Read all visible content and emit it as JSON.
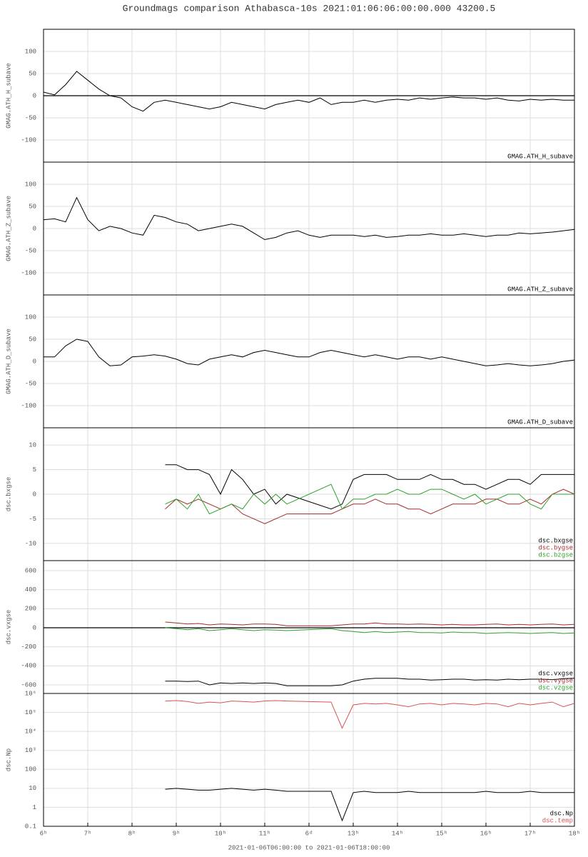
{
  "title": "Groundmags comparison Athabasca-10s 2021:01:06:06:00:00.000 43200.5",
  "chart_data": [
    {
      "type": "line",
      "ylabel": "GMAG.ATH_H_subave",
      "grid": true,
      "zero_line": true,
      "legend": "lower right",
      "xlim": [
        6,
        18
      ],
      "xticks": [
        6,
        7,
        8,
        9,
        10,
        11,
        12,
        13,
        14,
        15,
        16,
        17,
        18
      ],
      "ylim": [
        -150,
        150
      ],
      "yticks": [
        -100,
        -50,
        0,
        50,
        100
      ],
      "x": [
        6,
        6.25,
        6.5,
        6.75,
        7,
        7.25,
        7.5,
        7.75,
        8,
        8.25,
        8.5,
        8.75,
        9,
        9.25,
        9.5,
        9.75,
        10,
        10.25,
        10.5,
        10.75,
        11,
        11.25,
        11.5,
        11.75,
        12,
        12.25,
        12.5,
        12.75,
        13,
        13.25,
        13.5,
        13.75,
        14,
        14.25,
        14.5,
        14.75,
        15,
        15.25,
        15.5,
        15.75,
        16,
        16.25,
        16.5,
        16.75,
        17,
        17.25,
        17.5,
        17.75,
        18
      ],
      "series": [
        {
          "name": "GMAG.ATH_H_subave",
          "color": "#000000",
          "values": [
            8,
            2,
            25,
            55,
            35,
            15,
            0,
            -5,
            -25,
            -35,
            -15,
            -10,
            -15,
            -20,
            -25,
            -30,
            -25,
            -15,
            -20,
            -25,
            -30,
            -20,
            -15,
            -10,
            -15,
            -5,
            -20,
            -15,
            -15,
            -10,
            -15,
            -10,
            -8,
            -10,
            -5,
            -8,
            -5,
            -3,
            -5,
            -5,
            -8,
            -5,
            -10,
            -12,
            -8,
            -10,
            -8,
            -10,
            -10
          ]
        }
      ]
    },
    {
      "type": "line",
      "ylabel": "GMAG.ATH_Z_subave",
      "grid": true,
      "zero_line": false,
      "legend": "lower right",
      "xlim": [
        6,
        18
      ],
      "xticks": [
        6,
        7,
        8,
        9,
        10,
        11,
        12,
        13,
        14,
        15,
        16,
        17,
        18
      ],
      "ylim": [
        -150,
        150
      ],
      "yticks": [
        -100,
        -50,
        0,
        50,
        100
      ],
      "x": [
        6,
        6.25,
        6.5,
        6.75,
        7,
        7.25,
        7.5,
        7.75,
        8,
        8.25,
        8.5,
        8.75,
        9,
        9.25,
        9.5,
        9.75,
        10,
        10.25,
        10.5,
        10.75,
        11,
        11.25,
        11.5,
        11.75,
        12,
        12.25,
        12.5,
        12.75,
        13,
        13.25,
        13.5,
        13.75,
        14,
        14.25,
        14.5,
        14.75,
        15,
        15.25,
        15.5,
        15.75,
        16,
        16.25,
        16.5,
        16.75,
        17,
        17.25,
        17.5,
        17.75,
        18
      ],
      "series": [
        {
          "name": "GMAG.ATH_Z_subave",
          "color": "#000000",
          "values": [
            20,
            22,
            15,
            70,
            20,
            -5,
            5,
            0,
            -10,
            -15,
            30,
            25,
            15,
            10,
            -5,
            0,
            5,
            10,
            5,
            -10,
            -25,
            -20,
            -10,
            -5,
            -15,
            -20,
            -15,
            -15,
            -15,
            -18,
            -15,
            -20,
            -18,
            -15,
            -15,
            -12,
            -15,
            -15,
            -12,
            -15,
            -18,
            -15,
            -15,
            -10,
            -12,
            -10,
            -8,
            -5,
            -2
          ]
        }
      ]
    },
    {
      "type": "line",
      "ylabel": "GMAG.ATH_D_subave",
      "grid": true,
      "zero_line": false,
      "legend": "lower right",
      "xlim": [
        6,
        18
      ],
      "xticks": [
        6,
        7,
        8,
        9,
        10,
        11,
        12,
        13,
        14,
        15,
        16,
        17,
        18
      ],
      "ylim": [
        -150,
        150
      ],
      "yticks": [
        -100,
        -50,
        0,
        50,
        100
      ],
      "x": [
        6,
        6.25,
        6.5,
        6.75,
        7,
        7.25,
        7.5,
        7.75,
        8,
        8.25,
        8.5,
        8.75,
        9,
        9.25,
        9.5,
        9.75,
        10,
        10.25,
        10.5,
        10.75,
        11,
        11.25,
        11.5,
        11.75,
        12,
        12.25,
        12.5,
        12.75,
        13,
        13.25,
        13.5,
        13.75,
        14,
        14.25,
        14.5,
        14.75,
        15,
        15.25,
        15.5,
        15.75,
        16,
        16.25,
        16.5,
        16.75,
        17,
        17.25,
        17.5,
        17.75,
        18
      ],
      "series": [
        {
          "name": "GMAG.ATH_D_subave",
          "color": "#000000",
          "values": [
            10,
            10,
            35,
            50,
            45,
            10,
            -10,
            -8,
            10,
            12,
            15,
            12,
            5,
            -5,
            -8,
            5,
            10,
            15,
            10,
            20,
            25,
            20,
            15,
            10,
            10,
            20,
            25,
            20,
            15,
            10,
            15,
            10,
            5,
            10,
            10,
            5,
            10,
            5,
            0,
            -5,
            -10,
            -8,
            -5,
            -8,
            -10,
            -8,
            -5,
            0,
            3
          ]
        }
      ]
    },
    {
      "type": "line",
      "ylabel": "dsc.bxgse",
      "grid": true,
      "zero_line": false,
      "legend": "lower right",
      "xlim": [
        6,
        18
      ],
      "xticks": [
        6,
        7,
        8,
        9,
        10,
        11,
        12,
        13,
        14,
        15,
        16,
        17,
        18
      ],
      "ylim": [
        -13.5,
        13.5
      ],
      "yticks": [
        -10,
        -5,
        0,
        5,
        10
      ],
      "x": [
        8.75,
        9,
        9.25,
        9.5,
        9.75,
        10,
        10.25,
        10.5,
        10.75,
        11,
        11.25,
        11.5,
        12.5,
        12.75,
        13,
        13.25,
        13.5,
        13.75,
        14,
        14.25,
        14.5,
        14.75,
        15,
        15.25,
        15.5,
        15.75,
        16,
        16.25,
        16.5,
        16.75,
        17,
        17.25,
        17.5,
        17.75,
        18
      ],
      "series": [
        {
          "name": "dsc.bxgse",
          "color": "#000000",
          "values": [
            6,
            6,
            5,
            5,
            4,
            0,
            5,
            3,
            0,
            1,
            -2,
            0,
            -3,
            -2,
            3,
            4,
            4,
            4,
            3,
            3,
            3,
            4,
            3,
            3,
            2,
            2,
            1,
            2,
            3,
            3,
            2,
            4,
            4,
            4,
            4
          ]
        },
        {
          "name": "dsc.bygse",
          "color": "#a52a2a",
          "values": [
            -3,
            -1,
            -2,
            -1,
            -2,
            -3,
            -2,
            -4,
            -5,
            -6,
            -5,
            -4,
            -4,
            -3,
            -2,
            -2,
            -1,
            -2,
            -2,
            -3,
            -3,
            -4,
            -3,
            -2,
            -2,
            -2,
            -1,
            -1,
            -2,
            -2,
            -1,
            -2,
            0,
            1,
            0
          ]
        },
        {
          "name": "dsc.bzgse",
          "color": "#2ca02c",
          "values": [
            -2,
            -1,
            -3,
            0,
            -4,
            -3,
            -2,
            -3,
            0,
            -2,
            0,
            -2,
            2,
            -3,
            -1,
            -1,
            0,
            0,
            1,
            0,
            0,
            1,
            1,
            0,
            -1,
            0,
            -2,
            -1,
            0,
            0,
            -2,
            -3,
            0,
            0,
            0
          ]
        }
      ]
    },
    {
      "type": "line",
      "ylabel": "dsc.vxgse",
      "grid": true,
      "zero_line": true,
      "legend": "lower right",
      "xlim": [
        6,
        18
      ],
      "xticks": [
        6,
        7,
        8,
        9,
        10,
        11,
        12,
        13,
        14,
        15,
        16,
        17,
        18
      ],
      "ylim": [
        -690,
        705
      ],
      "yticks": [
        -600,
        -400,
        -200,
        0,
        200,
        400,
        600
      ],
      "x": [
        8.75,
        9,
        9.25,
        9.5,
        9.75,
        10,
        10.25,
        10.5,
        10.75,
        11,
        11.25,
        11.5,
        12.5,
        12.75,
        13,
        13.25,
        13.5,
        13.75,
        14,
        14.25,
        14.5,
        14.75,
        15,
        15.25,
        15.5,
        15.75,
        16,
        16.25,
        16.5,
        16.75,
        17,
        17.25,
        17.5,
        17.75,
        18
      ],
      "series": [
        {
          "name": "dsc.vxgse",
          "color": "#000000",
          "values": [
            -560,
            -560,
            -565,
            -560,
            -600,
            -580,
            -585,
            -580,
            -585,
            -580,
            -585,
            -610,
            -610,
            -600,
            -560,
            -540,
            -530,
            -530,
            -530,
            -540,
            -540,
            -550,
            -545,
            -540,
            -540,
            -550,
            -545,
            -550,
            -540,
            -545,
            -540,
            -540,
            -545,
            -535,
            -530
          ]
        },
        {
          "name": "dsc.vygse",
          "color": "#a52a2a",
          "values": [
            60,
            50,
            40,
            45,
            30,
            40,
            35,
            30,
            40,
            40,
            35,
            20,
            20,
            30,
            40,
            40,
            50,
            40,
            40,
            35,
            40,
            35,
            30,
            35,
            30,
            30,
            35,
            40,
            30,
            35,
            30,
            35,
            40,
            30,
            35
          ]
        },
        {
          "name": "dsc.vzgse",
          "color": "#2ca02c",
          "values": [
            0,
            -10,
            -20,
            -10,
            -30,
            -20,
            -10,
            -20,
            -30,
            -20,
            -25,
            -30,
            -10,
            -30,
            -40,
            -50,
            -40,
            -50,
            -45,
            -40,
            -50,
            -50,
            -55,
            -45,
            -50,
            -50,
            -60,
            -55,
            -50,
            -55,
            -60,
            -55,
            -50,
            -60,
            -55
          ]
        }
      ]
    },
    {
      "type": "line",
      "ylabel": "dsc.Np",
      "grid": true,
      "zero_line": false,
      "log": true,
      "legend": "lower right",
      "xlabel": "2021-01-06T06:00:00 to 2021-01-06T18:00:00",
      "xlim": [
        6,
        18
      ],
      "xticks": [
        {
          "value": 6,
          "label": "6ʰ"
        },
        {
          "value": 7,
          "label": "7ʰ"
        },
        {
          "value": 8,
          "label": "8ʰ"
        },
        {
          "value": 9,
          "label": "9ʰ"
        },
        {
          "value": 10,
          "label": "10ʰ"
        },
        {
          "value": 11,
          "label": "11ʰ"
        },
        {
          "value": 12,
          "label": "6ᵈ"
        },
        {
          "value": 13,
          "label": "13ʰ"
        },
        {
          "value": 14,
          "label": "14ʰ"
        },
        {
          "value": 15,
          "label": "15ʰ"
        },
        {
          "value": 16,
          "label": "16ʰ"
        },
        {
          "value": 17,
          "label": "17ʰ"
        },
        {
          "value": 18,
          "label": "18ʰ"
        }
      ],
      "ylim": [
        0.1,
        1000000
      ],
      "yticks": [
        0.1,
        1,
        10,
        100,
        {
          "value": 1000,
          "label": "10³"
        },
        {
          "value": 10000,
          "label": "10⁴"
        },
        {
          "value": 100000,
          "label": "10⁵"
        },
        {
          "value": 1000000,
          "label": "10⁶"
        }
      ],
      "x": [
        8.75,
        9,
        9.25,
        9.5,
        9.75,
        10,
        10.25,
        10.5,
        10.75,
        11,
        11.25,
        11.5,
        12.5,
        12.75,
        13,
        13.25,
        13.5,
        13.75,
        14,
        14.25,
        14.5,
        14.75,
        15,
        15.25,
        15.5,
        15.75,
        16,
        16.25,
        16.5,
        16.75,
        17,
        17.25,
        17.5,
        17.75,
        18
      ],
      "series": [
        {
          "name": "dsc.Np",
          "color": "#000000",
          "values": [
            9,
            10,
            9,
            8,
            8,
            9,
            10,
            9,
            8,
            9,
            8,
            7,
            7,
            0.2,
            6,
            7,
            6,
            6,
            6,
            7,
            6,
            6,
            6,
            6,
            6,
            6,
            7,
            6,
            6,
            6,
            7,
            6,
            6,
            6,
            6
          ]
        },
        {
          "name": "dsc.temp",
          "color": "#d9534f",
          "values": [
            400000,
            420000,
            380000,
            300000,
            350000,
            320000,
            400000,
            380000,
            350000,
            400000,
            420000,
            400000,
            350000,
            15000,
            250000,
            300000,
            280000,
            300000,
            250000,
            200000,
            280000,
            300000,
            250000,
            300000,
            280000,
            250000,
            300000,
            280000,
            200000,
            300000,
            250000,
            300000,
            350000,
            200000,
            300000
          ]
        }
      ]
    }
  ]
}
